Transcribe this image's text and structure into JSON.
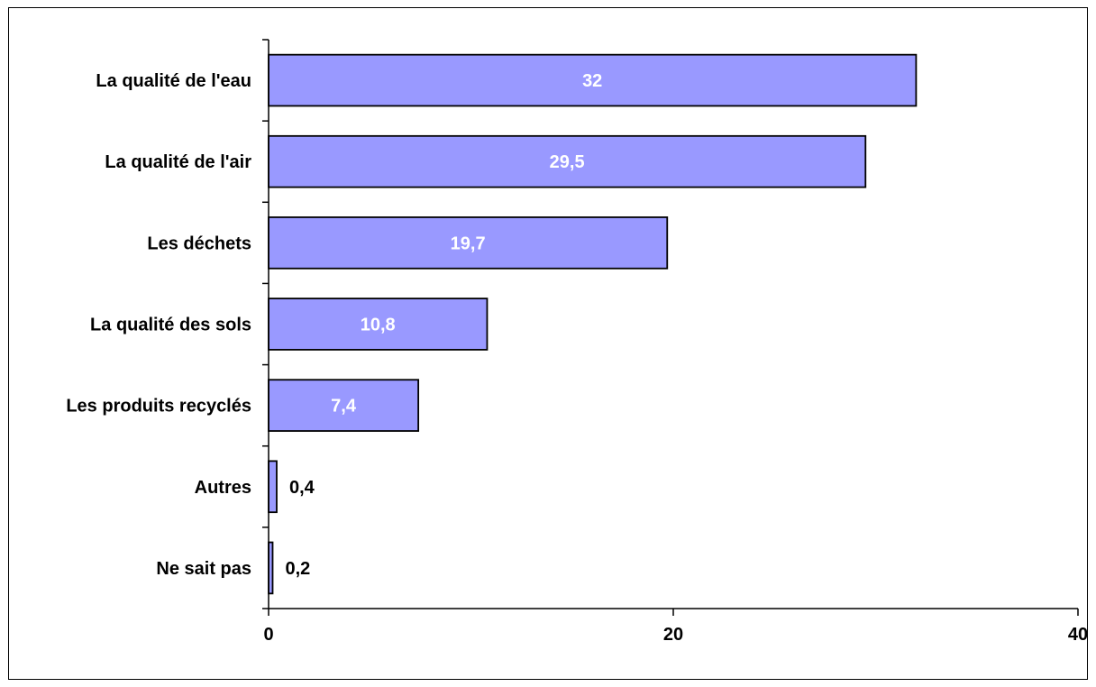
{
  "chart_data": {
    "type": "bar",
    "orientation": "horizontal",
    "categories": [
      "La qualité de l'eau",
      "La qualité de l'air",
      "Les déchets",
      "La qualité des sols",
      "Les produits recyclés",
      "Autres",
      "Ne sait pas"
    ],
    "values": [
      32,
      29.5,
      19.7,
      10.8,
      7.4,
      0.4,
      0.2
    ],
    "value_labels": [
      "32",
      "29,5",
      "19,7",
      "10,8",
      "7,4",
      "0,4",
      "0,2"
    ],
    "xlim": [
      0,
      40
    ],
    "x_ticks": [
      "0",
      "20",
      "40"
    ],
    "title": "",
    "xlabel": "",
    "ylabel": "",
    "grid": false,
    "legend": "none",
    "colors": {
      "bar_fill": "#9999ff",
      "bar_stroke": "#000000",
      "label_inside": "#ffffff",
      "label_outside": "#000000",
      "axis": "#000000"
    }
  }
}
